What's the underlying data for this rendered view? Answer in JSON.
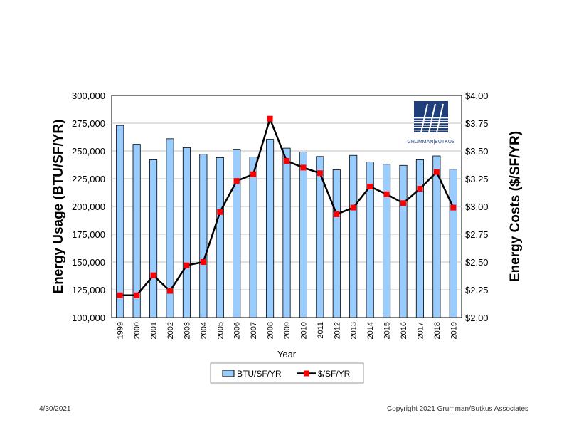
{
  "chart_data": {
    "type": "bar",
    "categories": [
      "1999",
      "2000",
      "2001",
      "2002",
      "2003",
      "2004",
      "2005",
      "2006",
      "2007",
      "2008",
      "2009",
      "2010",
      "2011",
      "2012",
      "2013",
      "2014",
      "2015",
      "2016",
      "2017",
      "2018",
      "2019"
    ],
    "series": [
      {
        "name": "BTU/SF/YR",
        "type": "bar",
        "axis": "left",
        "color": "#99CCFF",
        "values": [
          273000,
          256000,
          242000,
          261000,
          253000,
          247000,
          244000,
          251500,
          244500,
          260500,
          252500,
          249000,
          245000,
          233000,
          246000,
          240000,
          238000,
          237000,
          242000,
          245500,
          233500
        ]
      },
      {
        "name": "$/SF/YR",
        "type": "line",
        "axis": "right",
        "color": "#000000",
        "marker_color": "#FF0000",
        "values": [
          2.2,
          2.2,
          2.38,
          2.24,
          2.47,
          2.5,
          2.95,
          3.23,
          3.29,
          3.79,
          3.41,
          3.35,
          3.3,
          2.93,
          2.99,
          3.18,
          3.11,
          3.03,
          3.16,
          3.31,
          2.99
        ]
      }
    ],
    "xlabel": "Year",
    "ylabel_left": "Energy Usage (BTU/SF/YR)",
    "ylabel_right": "Energy Costs ($/SF/YR)",
    "ylim_left": [
      100000,
      300000
    ],
    "ylim_right": [
      2.0,
      4.0
    ],
    "yticks_left": [
      "300,000",
      "275,000",
      "250,000",
      "225,000",
      "200,000",
      "175,000",
      "150,000",
      "125,000",
      "100,000"
    ],
    "yticks_right": [
      "$4.00",
      "$3.75",
      "$3.50",
      "$3.25",
      "$3.00",
      "$2.75",
      "$2.50",
      "$2.25",
      "$2.00"
    ],
    "grid": true,
    "legend_placement": "bottom-center"
  },
  "logo": {
    "text": "GRUMMAN|BUTKUS",
    "color": "#1F3F7A"
  },
  "footer": {
    "date": "4/30/2021",
    "copyright": "Copyright 2021 Grumman/Butkus Associates"
  }
}
